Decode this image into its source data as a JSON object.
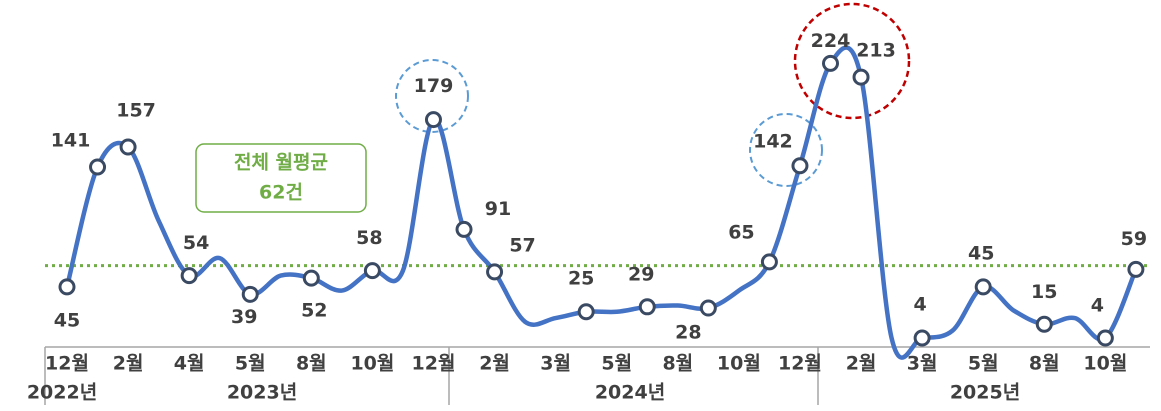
{
  "chart_data": {
    "type": "line",
    "categories": [
      "12월",
      null,
      "2월",
      null,
      "4월",
      null,
      "5월",
      null,
      "8월",
      null,
      "10월",
      null,
      "12월",
      null,
      "2월",
      null,
      "3월",
      null,
      "5월",
      null,
      "8월",
      null,
      "10월",
      null,
      "12월",
      null,
      "2월",
      null,
      "3월",
      null,
      "5월",
      null,
      "8월",
      null,
      "10월",
      null
    ],
    "years": [
      "2022년",
      "2023년",
      "2024년",
      "2025년"
    ],
    "series": [
      {
        "color": "#4472c4",
        "values": [
          45,
          141,
          157,
          98,
          54,
          68,
          39,
          54,
          52,
          42,
          58,
          58,
          179,
          91,
          57,
          17,
          20,
          25,
          25,
          29,
          30,
          28,
          42,
          65,
          142,
          224,
          213,
          4,
          4,
          10,
          45,
          26,
          15,
          20,
          4,
          59
        ],
        "value_labels": [
          "45",
          "141",
          "157",
          null,
          "54",
          null,
          "39",
          null,
          "52",
          null,
          "58",
          null,
          "179",
          "91",
          "57",
          null,
          null,
          "25",
          null,
          "29",
          null,
          "28",
          null,
          "65",
          "142",
          "224",
          "213",
          null,
          "4",
          null,
          "45",
          null,
          "15",
          null,
          "4",
          "59"
        ]
      }
    ],
    "ylim": [
      0,
      270
    ],
    "average": {
      "value": 62,
      "label_lines": [
        "전체 월평균",
        "62건"
      ],
      "color": "#70ad47"
    }
  }
}
